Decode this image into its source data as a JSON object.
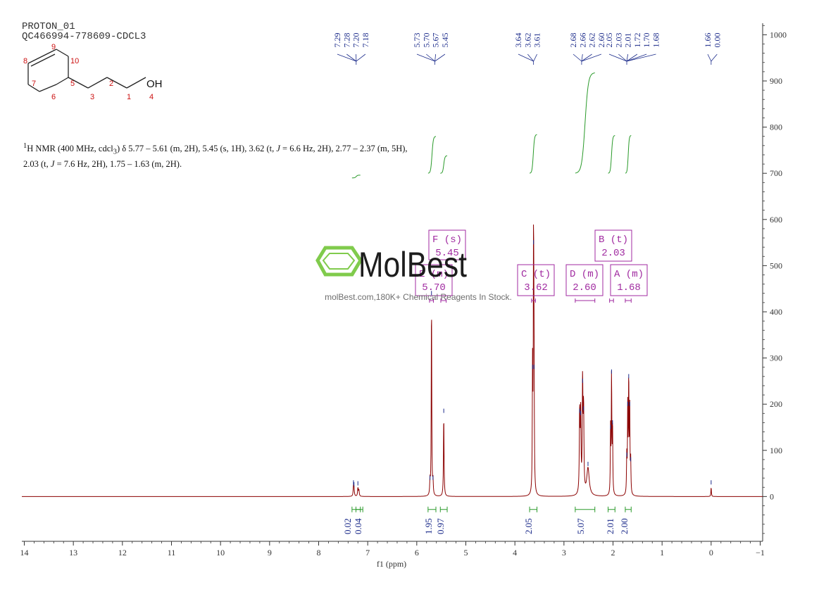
{
  "header": {
    "line1": "PROTON_01",
    "line2": "QC466994-778609-CDCL3"
  },
  "summary": {
    "sup": "1",
    "nucleus": "H NMR (400 MHz, cdcl",
    "sub": "3",
    "text_a": ") δ 5.77 – 5.61 (m, 2H), 5.45 (s, 1H), 3.62 (t, ",
    "j": "J",
    "text_b": " = 6.6 Hz, 2H), 2.77 – 2.37 (m, 5H), 2.03 (t, ",
    "text_c": " = 7.6 Hz, 2H), 1.75 – 1.63 (m, 2H)."
  },
  "watermark": {
    "brand": "MolBest",
    "tagline": "molBest.com,180K+ Chemical Reagents In Stock."
  },
  "structure": {
    "atoms": [
      "9",
      "10",
      "8",
      "7",
      "5",
      "3",
      "2",
      "1",
      "6",
      "4"
    ],
    "oh": "OH"
  },
  "colors": {
    "spectrum": "#8b0000",
    "peak_labels": "#1a2a8a",
    "integral": "#2a9a2a",
    "multiplet_box": "#a02aa0",
    "axis": "#333333",
    "logo": "#7ac943"
  },
  "chart_data": {
    "type": "line",
    "xlabel": "f1 (ppm)",
    "x_ticks": [
      14,
      13,
      12,
      11,
      10,
      9,
      8,
      7,
      6,
      5,
      4,
      3,
      2,
      1,
      0,
      -1
    ],
    "x_tick_labels": [
      "14",
      "13",
      "12",
      "11",
      "10",
      "9",
      "8",
      "7",
      "6",
      "5",
      "4",
      "3",
      "2",
      "1",
      "0",
      "−1"
    ],
    "xlim": [
      14.05,
      -1.05
    ],
    "ylim": [
      -97,
      1025
    ],
    "y_ticks": [
      0,
      100,
      200,
      300,
      400,
      500,
      600,
      700,
      800,
      900,
      1000
    ],
    "y_tick_labels": [
      "0",
      "100",
      "200",
      "300",
      "400",
      "500",
      "600",
      "700",
      "800",
      "900",
      "1000"
    ],
    "peaks": [
      {
        "ppm": 7.29,
        "h": 20,
        "w": 0.008
      },
      {
        "ppm": 7.28,
        "h": 16,
        "w": 0.008
      },
      {
        "ppm": 7.2,
        "h": 18,
        "w": 0.008
      },
      {
        "ppm": 7.18,
        "h": 14,
        "w": 0.008
      },
      {
        "ppm": 5.73,
        "h": 30,
        "w": 0.007
      },
      {
        "ppm": 5.7,
        "h": 430,
        "w": 0.006
      },
      {
        "ppm": 5.67,
        "h": 30,
        "w": 0.007
      },
      {
        "ppm": 5.45,
        "h": 175,
        "w": 0.007
      },
      {
        "ppm": 3.64,
        "h": 270,
        "w": 0.006
      },
      {
        "ppm": 3.62,
        "h": 540,
        "w": 0.006
      },
      {
        "ppm": 3.61,
        "h": 270,
        "w": 0.006
      },
      {
        "ppm": 2.68,
        "h": 175,
        "w": 0.008
      },
      {
        "ppm": 2.66,
        "h": 170,
        "w": 0.008
      },
      {
        "ppm": 2.62,
        "h": 240,
        "w": 0.008
      },
      {
        "ppm": 2.6,
        "h": 180,
        "w": 0.008
      },
      {
        "ppm": 2.51,
        "h": 60,
        "w": 0.03
      },
      {
        "ppm": 2.05,
        "h": 140,
        "w": 0.006
      },
      {
        "ppm": 2.03,
        "h": 260,
        "w": 0.006
      },
      {
        "ppm": 2.01,
        "h": 150,
        "w": 0.006
      },
      {
        "ppm": 1.72,
        "h": 80,
        "w": 0.006
      },
      {
        "ppm": 1.7,
        "h": 190,
        "w": 0.006
      },
      {
        "ppm": 1.68,
        "h": 250,
        "w": 0.006
      },
      {
        "ppm": 1.66,
        "h": 190,
        "w": 0.006
      },
      {
        "ppm": 1.64,
        "h": 70,
        "w": 0.006
      },
      {
        "ppm": 0.0,
        "h": 20,
        "w": 0.006
      }
    ],
    "peak_groups": [
      {
        "center": 7.235,
        "labels": [
          "7.29",
          "7.28",
          "7.20",
          "7.18"
        ]
      },
      {
        "center": 5.63,
        "labels": [
          "5.73",
          "5.70",
          "5.67",
          "5.45"
        ]
      },
      {
        "center": 3.62,
        "labels": [
          "3.64",
          "3.62",
          "3.61"
        ]
      },
      {
        "center": 2.64,
        "labels": [
          "2.68",
          "2.66",
          "2.62",
          "2.60"
        ]
      },
      {
        "center": 1.72,
        "labels": [
          "2.05",
          "2.03",
          "2.01",
          "1.72",
          "1.70",
          "1.68"
        ]
      },
      {
        "center": 0.0,
        "labels": [
          "1.66",
          "0.00"
        ]
      }
    ],
    "integrals": [
      {
        "from": 7.32,
        "to": 7.15,
        "value": "0.02"
      },
      {
        "from": 7.24,
        "to": 7.1,
        "value": "0.04"
      },
      {
        "from": 5.77,
        "to": 5.61,
        "value": "1.95"
      },
      {
        "from": 5.52,
        "to": 5.38,
        "value": "0.97"
      },
      {
        "from": 3.7,
        "to": 3.55,
        "value": "2.05"
      },
      {
        "from": 2.77,
        "to": 2.37,
        "value": "5.07"
      },
      {
        "from": 2.1,
        "to": 1.96,
        "value": "2.01"
      },
      {
        "from": 1.75,
        "to": 1.63,
        "value": "2.00"
      }
    ],
    "integral_curves": [
      {
        "from": 7.32,
        "to": 7.15,
        "base": 690,
        "top": 696
      },
      {
        "from": 5.77,
        "to": 5.61,
        "base": 700,
        "top": 780
      },
      {
        "from": 5.52,
        "to": 5.38,
        "base": 700,
        "top": 738
      },
      {
        "from": 3.7,
        "to": 3.55,
        "base": 700,
        "top": 784
      },
      {
        "from": 2.77,
        "to": 2.37,
        "base": 700,
        "top": 918
      },
      {
        "from": 2.1,
        "to": 1.96,
        "base": 700,
        "top": 782
      },
      {
        "from": 1.75,
        "to": 1.63,
        "base": 700,
        "top": 782
      }
    ],
    "multiplets": [
      {
        "label": "F (s)",
        "shift": "5.45",
        "from": 5.51,
        "to": 5.4
      },
      {
        "label": "E (m)",
        "shift": "5.70",
        "from": 5.74,
        "to": 5.66
      },
      {
        "label": "C (t)",
        "shift": "3.62",
        "from": 3.66,
        "to": 3.58
      },
      {
        "label": "D (m)",
        "shift": "2.60",
        "from": 2.77,
        "to": 2.37
      },
      {
        "label": "B (t)",
        "shift": "2.03",
        "from": 2.07,
        "to": 1.99
      },
      {
        "label": "A (m)",
        "shift": "1.68",
        "from": 1.75,
        "to": 1.63
      }
    ]
  }
}
